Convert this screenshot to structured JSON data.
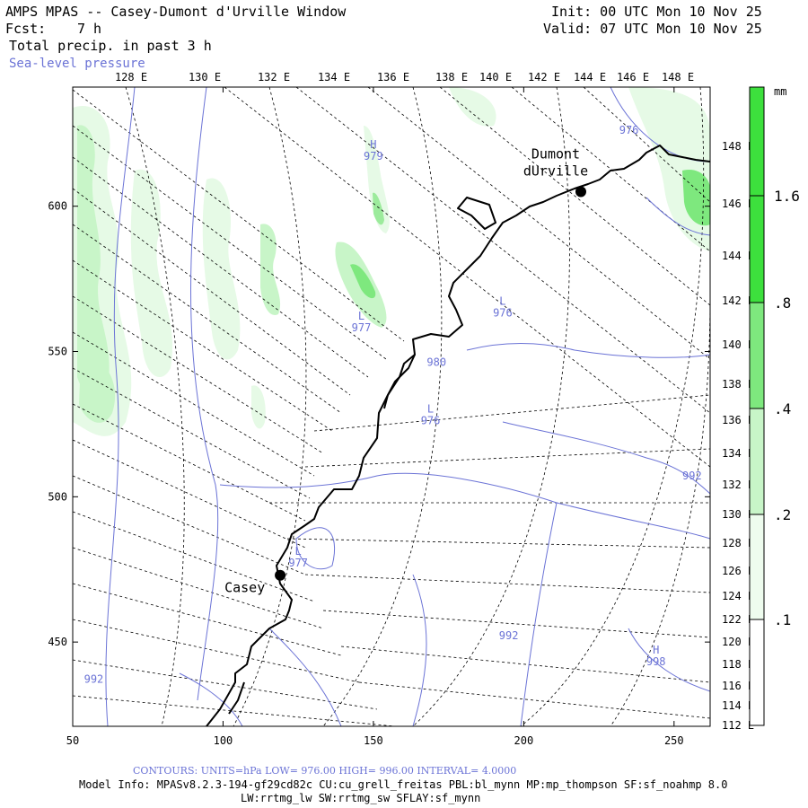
{
  "header": {
    "title": "AMPS MPAS -- Casey-Dumont d'Urville Window",
    "fcst_label": "Fcst:",
    "fcst_value": "7 h",
    "field1": "Total precip. in past 3 h",
    "field2": "Sea-level pressure",
    "init": "Init: 00 UTC Mon 10 Nov 25",
    "valid": "Valid: 07 UTC Mon 10 Nov 25"
  },
  "top_lon_labels": [
    "128 E",
    "130 E",
    "132 E",
    "134 E",
    "136 E",
    "138 E",
    "140 E",
    "142 E",
    "144 E",
    "146 E",
    "148 E"
  ],
  "right_lon_labels": [
    "148 E",
    "146 E",
    "144 E",
    "142 E",
    "140 E",
    "138 E",
    "136 E",
    "134 E",
    "132 E",
    "130 E",
    "128 E",
    "126 E",
    "124 E",
    "122 E",
    "120 E",
    "118 E",
    "116 E",
    "114 E",
    "112 E"
  ],
  "x_axis": {
    "ticks": [
      50,
      100,
      150,
      200,
      250
    ],
    "range": [
      50,
      262
    ]
  },
  "y_axis": {
    "ticks": [
      450,
      500,
      550,
      600
    ],
    "range": [
      421,
      641
    ]
  },
  "colorbar": {
    "unit": "mm",
    "labels": [
      ".1",
      ".2",
      ".4",
      ".8",
      "1.6"
    ],
    "colors": [
      "#ffffff",
      "#e8fbe8",
      "#b8f3b8",
      "#7ee87e",
      "#3de03d"
    ]
  },
  "stations": [
    {
      "name": "Casey",
      "x": 119,
      "y": 473
    },
    {
      "name": "Dumont dUrville",
      "name_line1": "Dumont",
      "name_line2": "dUrville",
      "x": 219,
      "y": 605
    }
  ],
  "pressure_labels": [
    {
      "kind": "H",
      "value": "979",
      "x": 150,
      "y": 620
    },
    {
      "kind": "H",
      "value": "998",
      "x": 244,
      "y": 446
    },
    {
      "kind": "L",
      "value": "976",
      "x": 193,
      "y": 566
    },
    {
      "kind": "L",
      "value": "977",
      "x": 146,
      "y": 561
    },
    {
      "kind": "L",
      "value": "976",
      "x": 169,
      "y": 529
    },
    {
      "kind": "L",
      "value": "977",
      "x": 125,
      "y": 480
    },
    {
      "kind": "",
      "value": "980",
      "x": 171,
      "y": 545
    },
    {
      "kind": "",
      "value": "976",
      "x": 235,
      "y": 625
    },
    {
      "kind": "",
      "value": "992",
      "x": 256,
      "y": 506
    },
    {
      "kind": "",
      "value": "992",
      "x": 195,
      "y": 451
    },
    {
      "kind": "",
      "value": "992",
      "x": 57,
      "y": 436
    }
  ],
  "footer": {
    "contours": "CONTOURS:  UNITS=hPa  LOW=  976.00      HIGH=  996.00      INTERVAL=   4.0000",
    "model_info": "Model Info: MPASv8.2.3-194-gf29cd82c CU:cu_grell_freitas PBL:bl_mynn MP:mp_thompson SF:sf_noahmp 8.0",
    "model_info2": "LW:rrtmg_lw SW:rrtmg_sw SFLAY:sf_mynn"
  },
  "colors": {
    "contour": "#6b73d6",
    "coast": "#000000",
    "grid": "#000000"
  }
}
